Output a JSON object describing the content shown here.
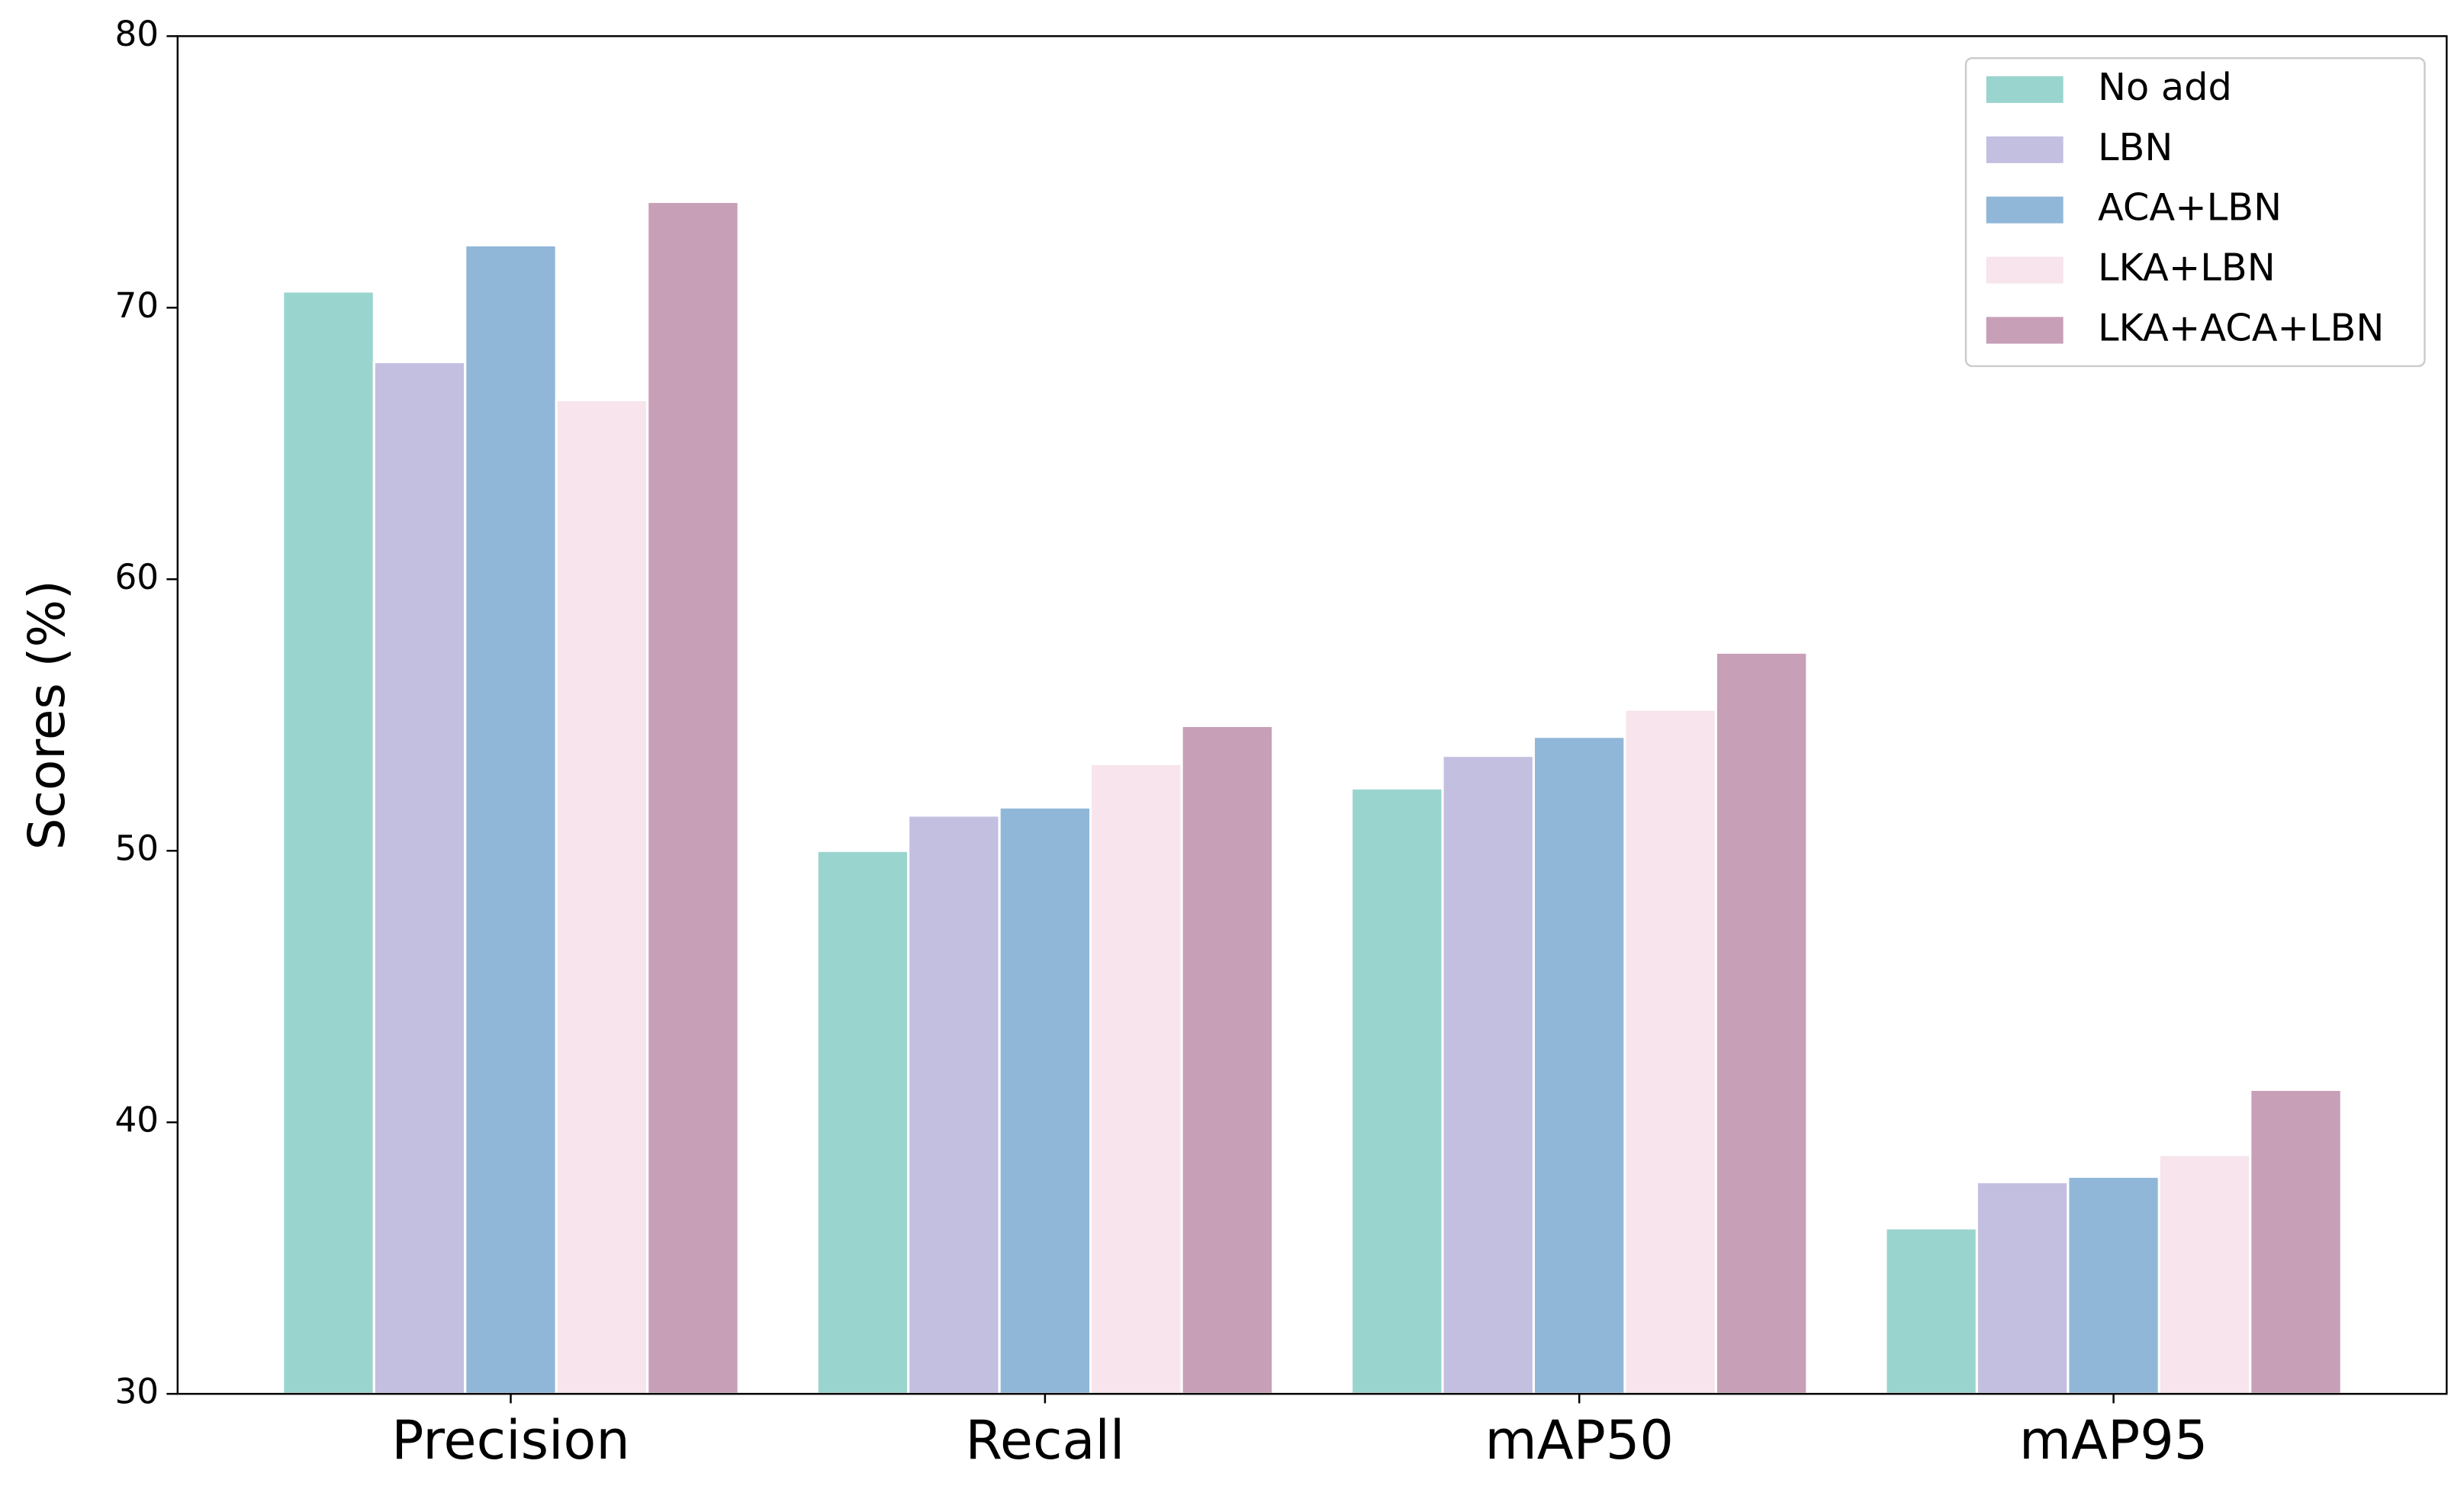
{
  "chart_data": {
    "type": "bar",
    "ylabel": "Scores (%)",
    "categories": [
      "Precision",
      "Recall",
      "mAP50",
      "mAP95"
    ],
    "series": [
      {
        "name": "No add",
        "color": "#9ad4cf",
        "values": [
          70.6,
          50.0,
          52.3,
          36.1
        ]
      },
      {
        "name": "LBN",
        "color": "#c3bfe0",
        "values": [
          68.0,
          51.3,
          53.5,
          37.8
        ]
      },
      {
        "name": "ACA+LBN",
        "color": "#91b7d8",
        "values": [
          72.3,
          51.6,
          54.2,
          38.0
        ]
      },
      {
        "name": "LKA+LBN",
        "color": "#f7e4ec",
        "values": [
          66.6,
          53.2,
          55.2,
          38.8
        ]
      },
      {
        "name": "LKA+ACA+LBN",
        "color": "#c79fb6",
        "values": [
          73.9,
          54.6,
          57.3,
          41.2
        ]
      }
    ],
    "ylim": [
      30,
      80
    ],
    "yticks": [
      30,
      40,
      50,
      60,
      70,
      80
    ],
    "grid": false,
    "legend": "upper right"
  }
}
